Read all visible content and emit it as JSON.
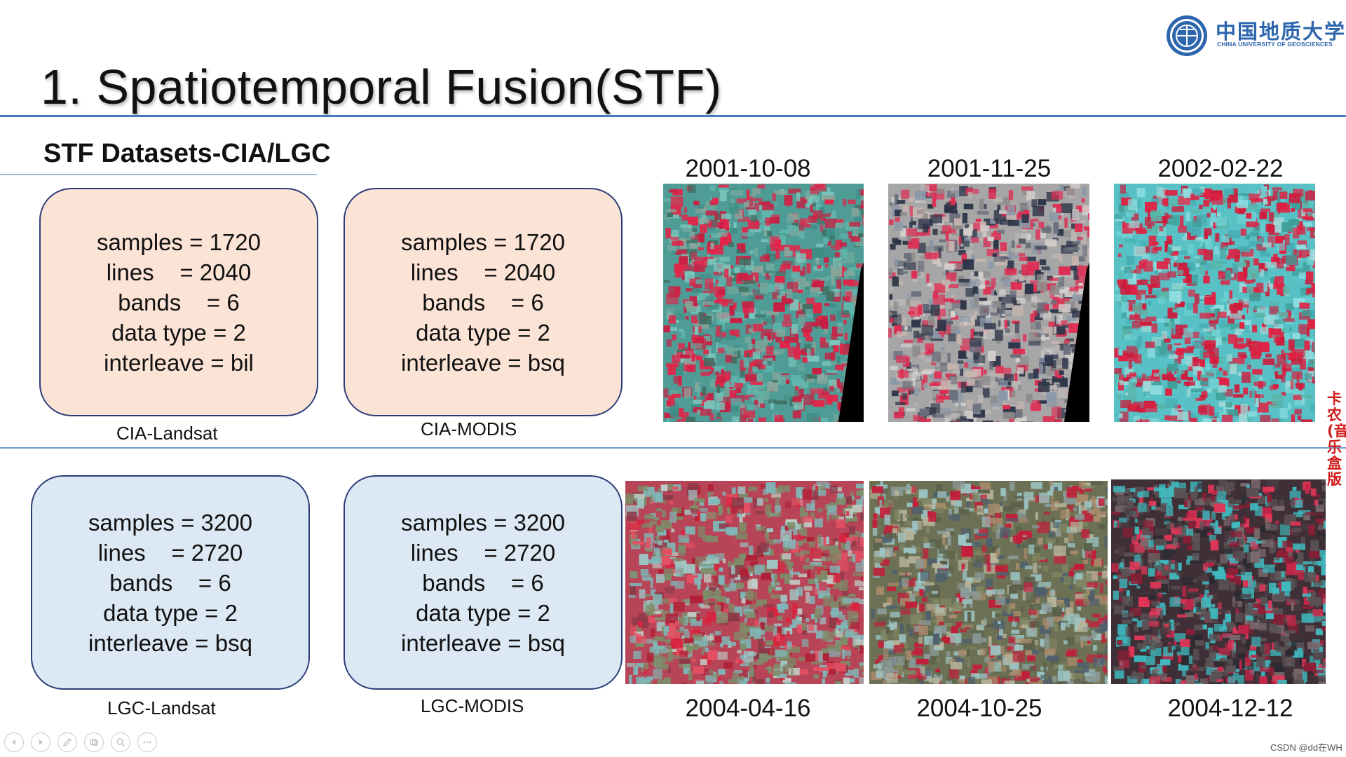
{
  "slide": {
    "title": "1. Spatiotemporal Fusion(STF)",
    "subtitle": "STF Datasets-CIA/LGC"
  },
  "logo": {
    "name_cn": "中国地质大学",
    "name_en": "CHINA UNIVERSITY OF GEOSCIENCES"
  },
  "datasets": [
    {
      "caption": "CIA-Landsat",
      "lines": [
        "samples = 1720",
        "lines    = 2040",
        "bands    = 6",
        "data type = 2",
        "interleave = bil"
      ]
    },
    {
      "caption": "CIA-MODIS",
      "lines": [
        "samples = 1720",
        "lines    = 2040",
        "bands    = 6",
        "data type = 2",
        "interleave = bsq"
      ]
    },
    {
      "caption": "LGC-Landsat",
      "lines": [
        "samples = 3200",
        "lines    = 2720",
        "bands    = 6",
        "data type = 2",
        "interleave = bsq"
      ]
    },
    {
      "caption": "LGC-MODIS",
      "lines": [
        "samples = 3200",
        "lines    = 2720",
        "bands    = 6",
        "data type = 2",
        "interleave = bsq"
      ]
    }
  ],
  "images": {
    "cia": [
      {
        "date": "2001-10-08"
      },
      {
        "date": "2001-11-25"
      },
      {
        "date": "2002-02-22"
      }
    ],
    "lgc": [
      {
        "date": "2004-04-16"
      },
      {
        "date": "2004-10-25"
      },
      {
        "date": "2004-12-12"
      }
    ]
  },
  "nav": [
    "prev-icon",
    "next-icon",
    "pen-icon",
    "slides-icon",
    "zoom-icon",
    "more-icon"
  ],
  "watermark": "CSDN @dd在WH",
  "side_text": "卡农(音乐盒版"
}
